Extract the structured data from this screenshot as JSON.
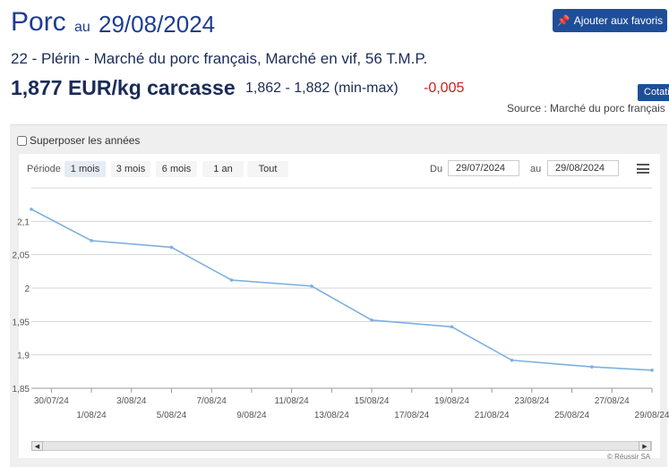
{
  "header": {
    "product": "Porc",
    "au": "au",
    "date": "29/08/2024",
    "favorite_label": "Ajouter aux favoris",
    "subtitle": "22 - Plérin - Marché du porc français, Marché en vif, 56 T.M.P.",
    "price_main": "1,877 EUR/kg carcasse",
    "price_range": "1,862 - 1,882 (min-max)",
    "price_change": "-0,005",
    "cotation_label": "Cotati",
    "source": "Source : Marché du porc français"
  },
  "controls": {
    "overlay_label": "Superposer les années",
    "period_label": "Période",
    "periods": [
      "1 mois",
      "3 mois",
      "6 mois",
      "1 an",
      "Tout"
    ],
    "du_label": "Du",
    "au_label": "au",
    "date_from": "29/07/2024",
    "date_to": "29/08/2024",
    "credits": "© Réussir SA"
  },
  "colors": {
    "accent": "#1f4e98",
    "line": "#7cb0e3",
    "negative": "#d41a1a"
  },
  "chart_data": {
    "type": "line",
    "x": [
      "29/07/24",
      "01/08/24",
      "05/08/24",
      "08/08/24",
      "12/08/24",
      "15/08/24",
      "19/08/24",
      "22/08/24",
      "26/08/24",
      "29/08/24"
    ],
    "values": [
      2.118,
      2.071,
      2.061,
      2.012,
      2.003,
      1.952,
      1.942,
      1.892,
      1.882,
      1.877
    ],
    "y_ticks": [
      "2,1",
      "2,05",
      "2",
      "1,95",
      "1,9",
      "1,85"
    ],
    "y_tick_values": [
      2.1,
      2.05,
      2.0,
      1.95,
      1.9,
      1.85
    ],
    "x_tick_labels": [
      "30/07/24",
      "1/08/24",
      "3/08/24",
      "5/08/24",
      "7/08/24",
      "9/08/24",
      "11/08/24",
      "13/08/24",
      "15/08/24",
      "17/08/24",
      "19/08/24",
      "21/08/24",
      "23/08/24",
      "25/08/24",
      "27/08/24",
      "29/08/24"
    ],
    "ylim": [
      1.85,
      2.15
    ],
    "grid": true
  }
}
